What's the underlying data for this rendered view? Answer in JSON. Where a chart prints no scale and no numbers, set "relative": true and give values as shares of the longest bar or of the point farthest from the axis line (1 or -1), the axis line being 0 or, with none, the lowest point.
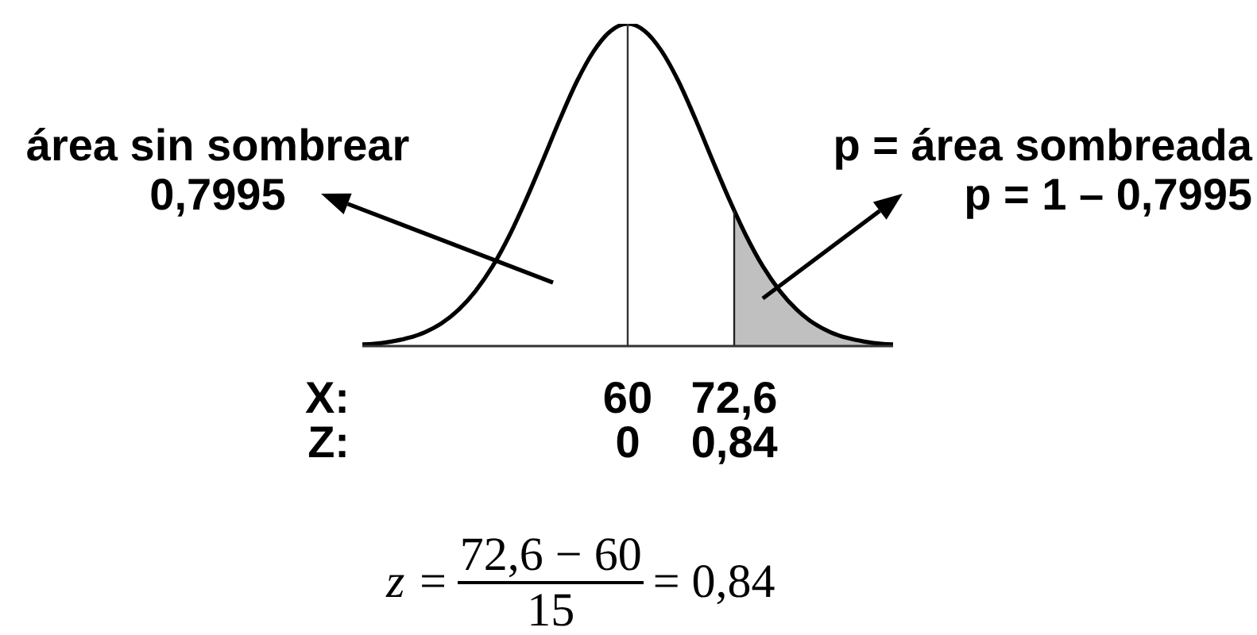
{
  "chart_data": {
    "type": "line",
    "relative": true,
    "marker": "none",
    "xlabel": "X:",
    "x2label": "Z:",
    "xlim": [
      28.6,
      91.4
    ],
    "xticks": [
      60,
      {
        "value": 72.6,
        "label": "72,6"
      }
    ],
    "x2lim": [
      -2.09,
      2.09
    ],
    "x2ticks": [
      0,
      {
        "value": 0.84,
        "label": "0,84"
      }
    ],
    "series": [
      {
        "type": "area",
        "color": "#c0c0c0",
        "x": [
          72.6,
          74,
          76,
          78,
          80,
          82,
          84,
          86,
          88,
          90,
          91.4
        ],
        "values": [
          0.42,
          0.343,
          0.247,
          0.171,
          0.113,
          0.071,
          0.043,
          0.025,
          0.014,
          0.007,
          0.005
        ]
      },
      {
        "color": "#000000",
        "x": [
          28.6,
          30,
          32,
          34,
          36,
          38,
          40,
          42,
          44,
          46,
          48,
          50,
          52,
          54,
          56,
          58,
          60,
          62,
          64,
          66,
          68,
          70,
          72,
          74,
          76,
          78,
          80,
          82,
          84,
          86,
          88,
          90,
          91.4
        ],
        "values": [
          0.005,
          0.007,
          0.014,
          0.025,
          0.043,
          0.071,
          0.113,
          0.171,
          0.247,
          0.343,
          0.456,
          0.579,
          0.705,
          0.822,
          0.916,
          0.978,
          1,
          0.978,
          0.916,
          0.822,
          0.705,
          0.579,
          0.456,
          0.343,
          0.247,
          0.171,
          0.113,
          0.071,
          0.043,
          0.025,
          0.014,
          0.007,
          0.005
        ]
      }
    ],
    "ref_lines": [
      {
        "axis": "x",
        "value": 60,
        "color": "#333333"
      },
      {
        "axis": "x",
        "value": 72.6,
        "color": "#222222"
      }
    ],
    "annotations": [
      "área sin sombrear\n0,7995",
      "p = área sombreada\np = 1 – 0,7995",
      "z =",
      "72,6 − 60",
      "15",
      "= 0,84"
    ]
  }
}
